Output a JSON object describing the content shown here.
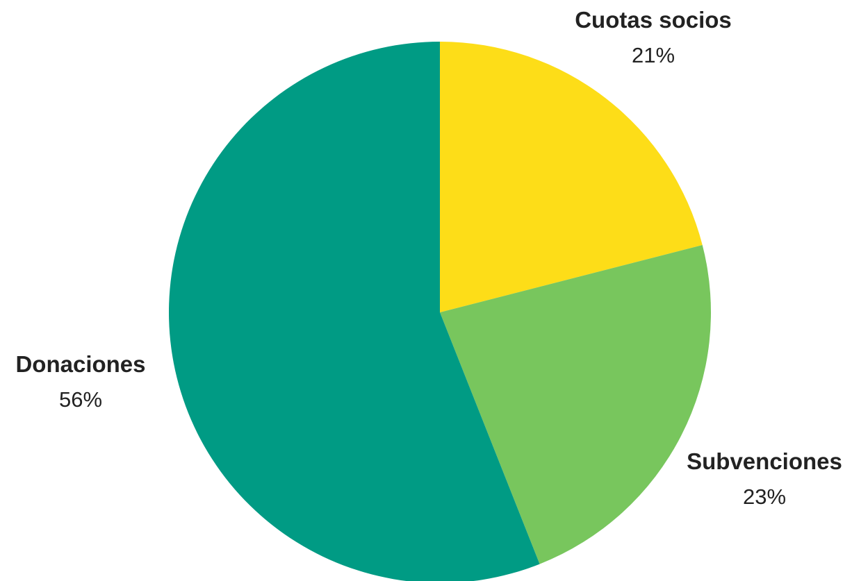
{
  "chart_data": {
    "type": "pie",
    "title": "",
    "start": "12 o'clock",
    "direction": "clockwise",
    "slices": [
      {
        "label": "Cuotas socios",
        "value": 21,
        "value_label": "21%",
        "color": "#FDDD18"
      },
      {
        "label": "Subvenciones",
        "value": 23,
        "value_label": "23%",
        "color": "#78C65D"
      },
      {
        "label": "Donaciones",
        "value": 56,
        "value_label": "56%",
        "color": "#009B84"
      }
    ]
  }
}
